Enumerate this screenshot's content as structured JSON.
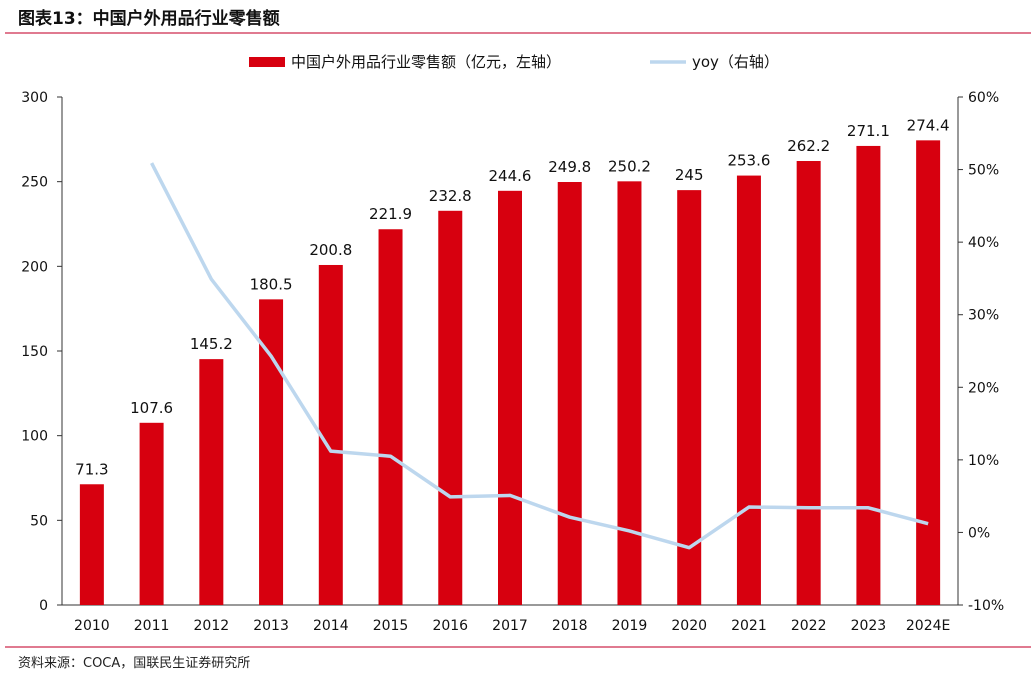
{
  "title": "图表13：中国户外用品行业零售额",
  "source": "资料来源：COCA，国联民生证券研究所",
  "colors": {
    "bar": "#d7000f",
    "line": "#bdd7ee",
    "rule": "#e07a90"
  },
  "chart_data": {
    "type": "bar+line",
    "categories": [
      "2010",
      "2011",
      "2012",
      "2013",
      "2014",
      "2015",
      "2016",
      "2017",
      "2018",
      "2019",
      "2020",
      "2021",
      "2022",
      "2023",
      "2024E"
    ],
    "series": [
      {
        "name": "中国户外用品行业零售额（亿元，左轴）",
        "type": "bar",
        "axis": "left",
        "values": [
          71.3,
          107.6,
          145.2,
          180.5,
          200.8,
          221.9,
          232.8,
          244.6,
          249.8,
          250.2,
          245,
          253.6,
          262.2,
          271.1,
          274.4
        ],
        "labels": [
          "71.3",
          "107.6",
          "145.2",
          "180.5",
          "200.8",
          "221.9",
          "232.8",
          "244.6",
          "249.8",
          "250.2",
          "245",
          "253.6",
          "262.2",
          "271.1",
          "274.4"
        ]
      },
      {
        "name": "yoy（右轴）",
        "type": "line",
        "axis": "right",
        "values": [
          null,
          50.9,
          34.9,
          24.3,
          11.2,
          10.5,
          4.9,
          5.1,
          2.1,
          0.2,
          -2.1,
          3.5,
          3.4,
          3.4,
          1.2
        ]
      }
    ],
    "left_axis": {
      "range": [
        0,
        300
      ],
      "ticks": [
        "0",
        "50",
        "100",
        "150",
        "200",
        "250",
        "300"
      ]
    },
    "right_axis": {
      "range": [
        -10,
        60
      ],
      "ticks": [
        "-10%",
        "0%",
        "10%",
        "20%",
        "30%",
        "40%",
        "50%",
        "60%"
      ]
    },
    "legend": "top-center"
  }
}
